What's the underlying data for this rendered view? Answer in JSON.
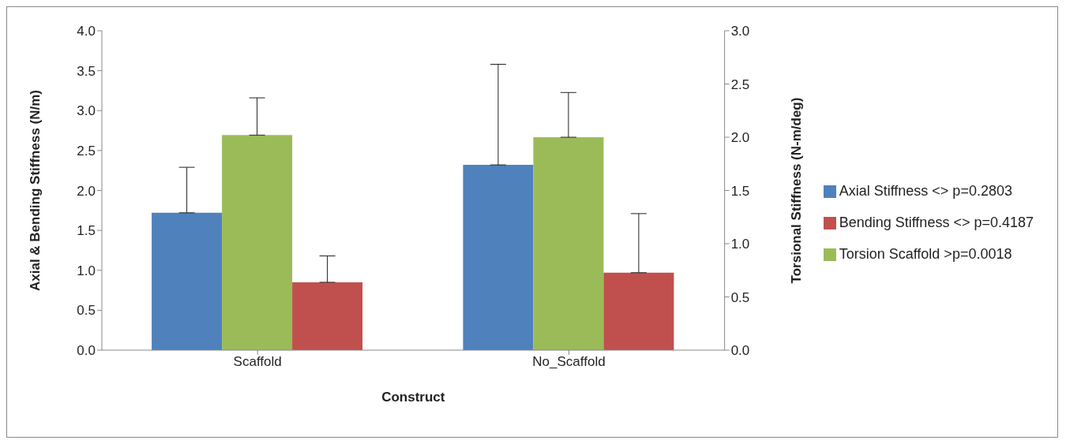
{
  "chart_data": {
    "type": "bar",
    "xlabel": "Construct",
    "ylabel": "Axial & Bending Stiffness (N/m)",
    "y2label": "Torsional  Stiffness (N-m/deg)",
    "categories": [
      "Scaffold",
      "No_Scaffold"
    ],
    "series": [
      {
        "name": "Axial Stiffness <> p=0.2803",
        "color": "#4f81bd",
        "values": [
          1.72,
          2.32
        ],
        "errors": [
          [
            1.72,
            2.29
          ],
          [
            2.32,
            3.58
          ]
        ]
      },
      {
        "name": "Torsion  Scaffold >p=0.0018",
        "color": "#9bbb59",
        "axis": "y2",
        "values": [
          2.02,
          2.0
        ],
        "errors": [
          [
            2.02,
            2.37
          ],
          [
            2.0,
            2.42
          ]
        ]
      },
      {
        "name": "Bending Stiffness <> p=0.4187",
        "color": "#c0504d",
        "values": [
          0.85,
          0.97
        ],
        "errors": [
          [
            0.85,
            1.18
          ],
          [
            0.97,
            1.71
          ]
        ]
      }
    ],
    "ylim": [
      0,
      4
    ],
    "yticks": [
      {
        "value": 0,
        "label": "0.0"
      },
      {
        "value": 0.5,
        "label": "0.5"
      },
      {
        "value": 1,
        "label": "1.0"
      },
      {
        "value": 1.5,
        "label": "1.5"
      },
      {
        "value": 2,
        "label": "2.0"
      },
      {
        "value": 2.5,
        "label": "2.5"
      },
      {
        "value": 3,
        "label": "3.0"
      },
      {
        "value": 3.5,
        "label": "3.5"
      },
      {
        "value": 4,
        "label": "4.0"
      }
    ],
    "y2lim": [
      0,
      3
    ],
    "y2ticks": [
      {
        "value": 0,
        "label": "0.0"
      },
      {
        "value": 0.5,
        "label": "0.5"
      },
      {
        "value": 1,
        "label": "1.0"
      },
      {
        "value": 1.5,
        "label": "1.5"
      },
      {
        "value": 2,
        "label": "2.0"
      },
      {
        "value": 2.5,
        "label": "2.5"
      },
      {
        "value": 3,
        "label": "3.0"
      }
    ],
    "grid": false,
    "legend": "right"
  }
}
